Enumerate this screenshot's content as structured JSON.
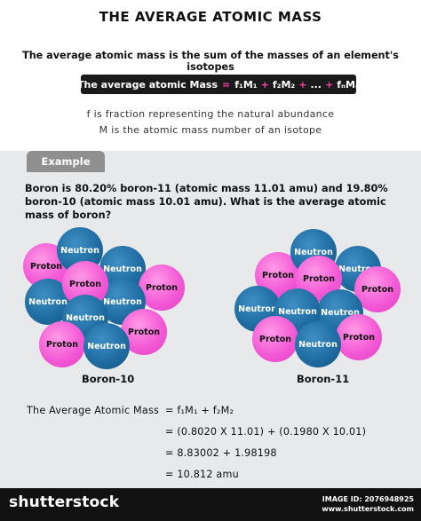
{
  "title": "THE AVERAGE ATOMIC MASS",
  "intro": "The average atomic mass is the sum of the masses of an element's isotopes",
  "formula_bar": {
    "label": "The average atomic Mass",
    "eq": "=",
    "t1": "f₁M₁",
    "plus1": "+",
    "t2": "f₂M₂",
    "plus2": "+",
    "dots": "...",
    "plus3": "+",
    "tn": "fₙMₙ"
  },
  "notes": [
    "f is fraction representing the natural abundance",
    "M is the atomic mass number of an isotope"
  ],
  "example_tab": "Example",
  "question": "Boron is 80.20% boron-11 (atomic mass 11.01 amu) and 19.80% boron-10 (atomic mass 10.01 amu). What is the average atomic mass of boron?",
  "particles": {
    "proton": "Proton",
    "neutron": "Neutron"
  },
  "isotopes": [
    "Boron-10",
    "Boron-11"
  ],
  "calculation": {
    "lhs": "The Average Atomic Mass",
    "steps": [
      "=  f₁M₁  +  f₂M₂",
      "=  (0.8020 X 11.01)  +  (0.1980 X 10.01)",
      "=  8.83002  +  1.98198",
      "=  10.812 amu"
    ]
  },
  "colors": {
    "proton": "#f35ad6",
    "neutron": "#1f6da3",
    "accent": "#ff3fb0",
    "panel": "#e7e9eb"
  },
  "footer": {
    "brand": "shutterstock",
    "meta1": "IMAGE ID: 2076948925",
    "meta2": "www.shutterstock.com"
  }
}
